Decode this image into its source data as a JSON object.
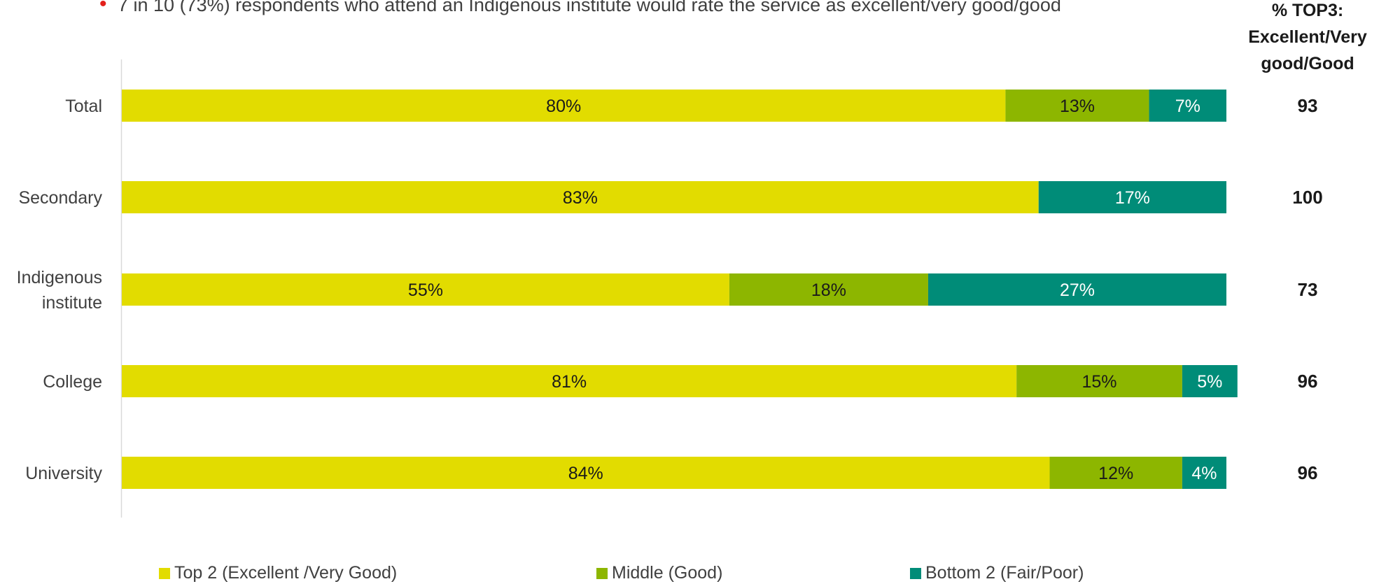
{
  "note": {
    "bullet": "•",
    "text": "7 in 10 (73%) respondents who attend an Indigenous institute would rate the service as excellent/very good/good"
  },
  "top3_header": {
    "line1": "% TOP3:",
    "line2": "Excellent/Very",
    "line3": "good/Good"
  },
  "legend": {
    "top2": "Top 2 (Excellent /Very Good)",
    "middle": "Middle (Good)",
    "bottom2": "Bottom 2 (Fair/Poor)"
  },
  "colors": {
    "top2": "#e2dc00",
    "middle": "#8db600",
    "bottom2": "#008c78"
  },
  "chart_data": {
    "type": "bar",
    "orientation": "horizontal",
    "stacked": true,
    "xlim": [
      0,
      100
    ],
    "categories": [
      "Total",
      "Secondary",
      "Indigenous institute",
      "College",
      "University"
    ],
    "category_lines": [
      [
        "Total"
      ],
      [
        "Secondary"
      ],
      [
        "Indigenous",
        "institute"
      ],
      [
        "College"
      ],
      [
        "University"
      ]
    ],
    "series": [
      {
        "name": "Top 2 (Excellent /Very Good)",
        "values": [
          80,
          83,
          55,
          81,
          84
        ]
      },
      {
        "name": "Middle (Good)",
        "values": [
          13,
          0,
          18,
          15,
          12
        ]
      },
      {
        "name": "Bottom 2 (Fair/Poor)",
        "values": [
          7,
          17,
          27,
          5,
          4
        ]
      }
    ],
    "top3": [
      93,
      100,
      73,
      96,
      96
    ],
    "legend_position": "bottom"
  }
}
